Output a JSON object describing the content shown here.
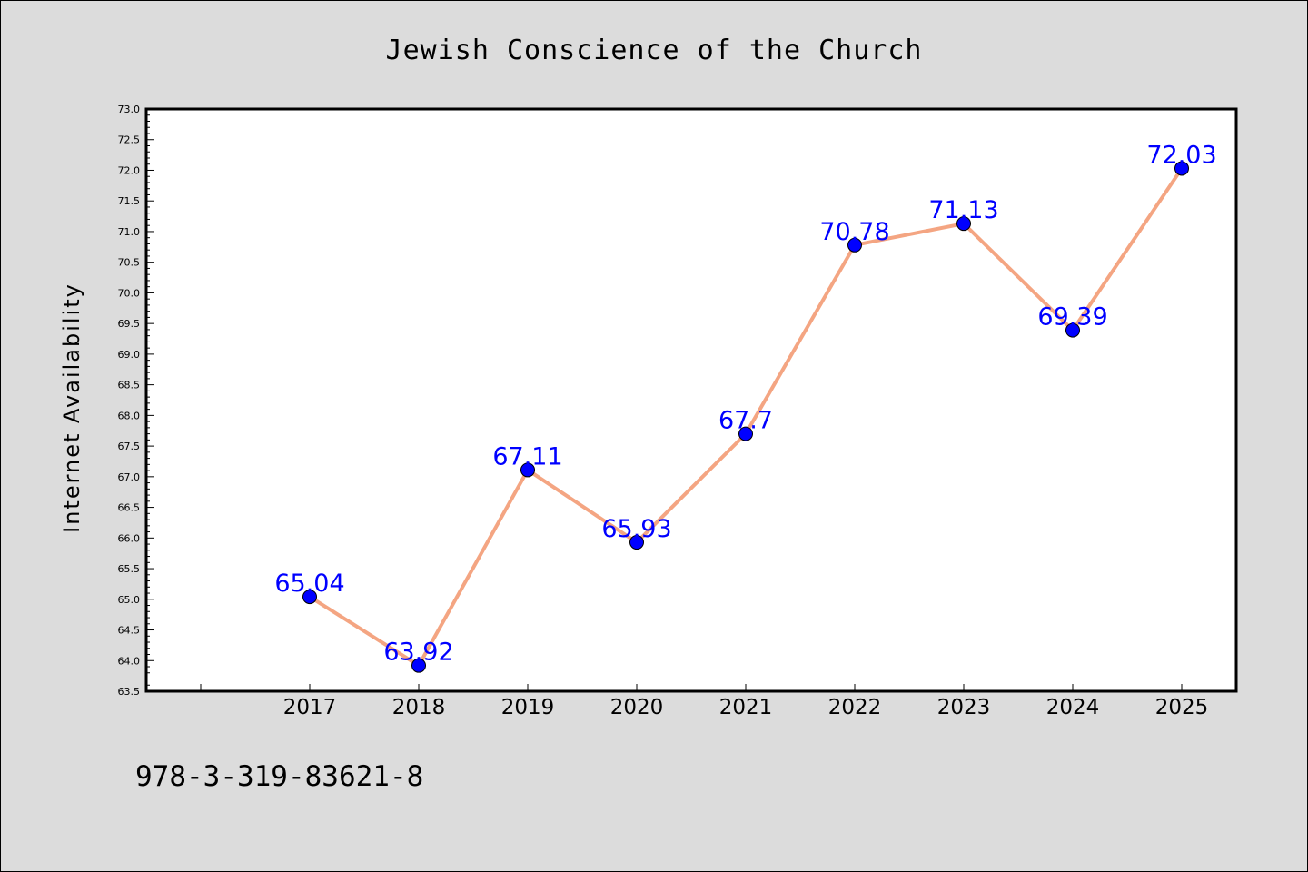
{
  "chart_data": {
    "type": "line",
    "title": "Jewish Conscience of the Church",
    "xlabel": "",
    "ylabel": "Internet Availability",
    "categories": [
      "2017",
      "2018",
      "2019",
      "2020",
      "2021",
      "2022",
      "2023",
      "2024",
      "2025"
    ],
    "series": [
      {
        "values": [
          65.04,
          63.92,
          67.11,
          65.93,
          67.7,
          70.78,
          71.13,
          69.39,
          72.03
        ],
        "data_labels": [
          "65.04",
          "63.92",
          "67.11",
          "65.93",
          "67.7",
          "70.78",
          "71.13",
          "69.39",
          "72.03"
        ],
        "line_color": "#f4a582",
        "marker_color": "#0000ff"
      }
    ],
    "ylim": [
      63.5,
      73.0
    ],
    "yticks": [
      "63.5",
      "64.0",
      "64.5",
      "65.0",
      "65.5",
      "66.0",
      "66.5",
      "67.0",
      "67.5",
      "68.0",
      "68.5",
      "69.0",
      "69.5",
      "70.0",
      "70.5",
      "71.0",
      "71.5",
      "72.0",
      "72.5",
      "73.0"
    ],
    "grid": false,
    "label_color": "#0000ff"
  },
  "footer": {
    "text": "978-3-319-83621-8"
  }
}
